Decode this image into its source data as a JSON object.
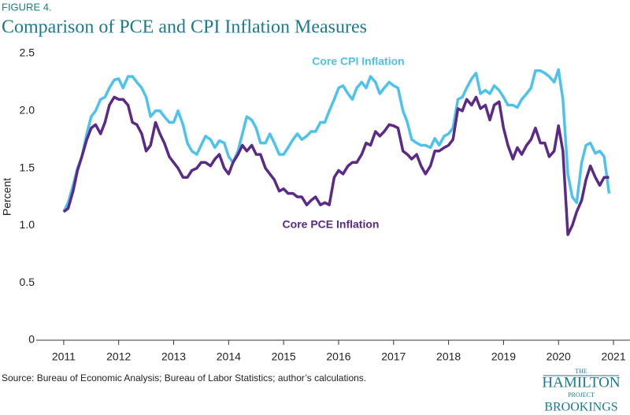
{
  "chart_data": {
    "type": "line",
    "figure_label": "FIGURE 4.",
    "title": "Comparison of PCE and CPI Inflation Measures",
    "y_label": "Percent",
    "source": "Source: Bureau of Economic Analysis; Bureau of Labor Statistics; author’s calculations.",
    "logo": {
      "top": "THE",
      "name": "HAMILTON",
      "sub": "PROJECT",
      "org": "BROOKINGS"
    },
    "xlim": [
      2010.5,
      2021.3
    ],
    "xticks": [
      2011,
      2012,
      2013,
      2014,
      2015,
      2016,
      2017,
      2018,
      2019,
      2020,
      2021
    ],
    "ylim": [
      0,
      2.5
    ],
    "yticks": [
      0,
      0.5,
      {
        "value": 1,
        "label": "1.0"
      },
      1.5,
      {
        "value": 2,
        "label": "2.0"
      },
      2.5
    ],
    "x": [
      2011,
      2011.08,
      2011.17,
      2011.25,
      2011.33,
      2011.42,
      2011.5,
      2011.58,
      2011.67,
      2011.75,
      2011.83,
      2011.92,
      2012,
      2012.08,
      2012.17,
      2012.25,
      2012.33,
      2012.42,
      2012.5,
      2012.58,
      2012.67,
      2012.75,
      2012.83,
      2012.92,
      2013,
      2013.08,
      2013.17,
      2013.25,
      2013.33,
      2013.42,
      2013.5,
      2013.58,
      2013.67,
      2013.75,
      2013.83,
      2013.92,
      2014,
      2014.08,
      2014.17,
      2014.25,
      2014.33,
      2014.42,
      2014.5,
      2014.58,
      2014.67,
      2014.75,
      2014.83,
      2014.92,
      2015,
      2015.08,
      2015.17,
      2015.25,
      2015.33,
      2015.42,
      2015.5,
      2015.58,
      2015.67,
      2015.75,
      2015.83,
      2015.92,
      2016,
      2016.08,
      2016.17,
      2016.25,
      2016.33,
      2016.42,
      2016.5,
      2016.58,
      2016.67,
      2016.75,
      2016.83,
      2016.92,
      2017,
      2017.08,
      2017.17,
      2017.25,
      2017.33,
      2017.42,
      2017.5,
      2017.58,
      2017.67,
      2017.75,
      2017.83,
      2017.92,
      2018,
      2018.08,
      2018.17,
      2018.25,
      2018.33,
      2018.42,
      2018.5,
      2018.58,
      2018.67,
      2018.75,
      2018.83,
      2018.92,
      2019,
      2019.08,
      2019.17,
      2019.25,
      2019.33,
      2019.42,
      2019.5,
      2019.58,
      2019.67,
      2019.75,
      2019.83,
      2019.92,
      2020,
      2020.08,
      2020.17,
      2020.25,
      2020.33,
      2020.42,
      2020.5,
      2020.58,
      2020.67,
      2020.75,
      2020.83,
      2020.92
    ],
    "series": [
      {
        "name": "Core CPI Inflation",
        "color": "#4cc2ec",
        "values": [
          1.12,
          1.2,
          1.35,
          1.5,
          1.6,
          1.8,
          1.95,
          2.0,
          2.1,
          2.12,
          2.2,
          2.27,
          2.28,
          2.2,
          2.3,
          2.3,
          2.25,
          2.2,
          2.12,
          1.95,
          2.0,
          2.0,
          1.95,
          1.9,
          1.9,
          2.0,
          1.88,
          1.72,
          1.65,
          1.62,
          1.7,
          1.78,
          1.75,
          1.68,
          1.74,
          1.72,
          1.6,
          1.55,
          1.65,
          1.8,
          1.95,
          1.92,
          1.85,
          1.72,
          1.72,
          1.8,
          1.72,
          1.62,
          1.62,
          1.68,
          1.75,
          1.8,
          1.75,
          1.78,
          1.82,
          1.82,
          1.9,
          1.9,
          2.0,
          2.1,
          2.2,
          2.22,
          2.15,
          2.1,
          2.2,
          2.25,
          2.2,
          2.3,
          2.25,
          2.15,
          2.2,
          2.25,
          2.22,
          2.2,
          2.0,
          1.9,
          1.75,
          1.72,
          1.7,
          1.7,
          1.68,
          1.76,
          1.7,
          1.78,
          1.8,
          1.85,
          2.1,
          2.12,
          2.2,
          2.28,
          2.33,
          2.15,
          2.18,
          2.15,
          2.22,
          2.18,
          2.12,
          2.05,
          2.05,
          2.03,
          2.1,
          2.15,
          2.2,
          2.35,
          2.35,
          2.33,
          2.3,
          2.25,
          2.36,
          2.1,
          1.45,
          1.25,
          1.2,
          1.55,
          1.7,
          1.72,
          1.63,
          1.65,
          1.6,
          1.28
        ]
      },
      {
        "name": "Core PCE Inflation",
        "color": "#5b2a86",
        "values": [
          1.12,
          1.15,
          1.3,
          1.48,
          1.6,
          1.75,
          1.85,
          1.88,
          1.8,
          1.9,
          2.05,
          2.12,
          2.1,
          2.1,
          2.05,
          1.9,
          1.88,
          1.8,
          1.65,
          1.7,
          1.9,
          1.8,
          1.72,
          1.6,
          1.55,
          1.5,
          1.42,
          1.42,
          1.48,
          1.5,
          1.55,
          1.55,
          1.52,
          1.58,
          1.62,
          1.5,
          1.45,
          1.55,
          1.62,
          1.7,
          1.65,
          1.7,
          1.62,
          1.62,
          1.5,
          1.45,
          1.4,
          1.3,
          1.32,
          1.28,
          1.28,
          1.25,
          1.25,
          1.18,
          1.22,
          1.25,
          1.18,
          1.2,
          1.18,
          1.42,
          1.48,
          1.45,
          1.52,
          1.55,
          1.55,
          1.62,
          1.72,
          1.7,
          1.82,
          1.78,
          1.82,
          1.88,
          1.87,
          1.85,
          1.65,
          1.62,
          1.58,
          1.62,
          1.52,
          1.45,
          1.52,
          1.65,
          1.65,
          1.68,
          1.7,
          1.75,
          2.02,
          2.0,
          2.1,
          2.05,
          2.12,
          2.02,
          2.05,
          1.92,
          2.05,
          2.08,
          1.85,
          1.7,
          1.58,
          1.68,
          1.62,
          1.7,
          1.75,
          1.85,
          1.72,
          1.72,
          1.6,
          1.65,
          1.87,
          1.65,
          0.92,
          1.0,
          1.12,
          1.22,
          1.4,
          1.52,
          1.42,
          1.35,
          1.42,
          1.42
        ]
      }
    ]
  }
}
